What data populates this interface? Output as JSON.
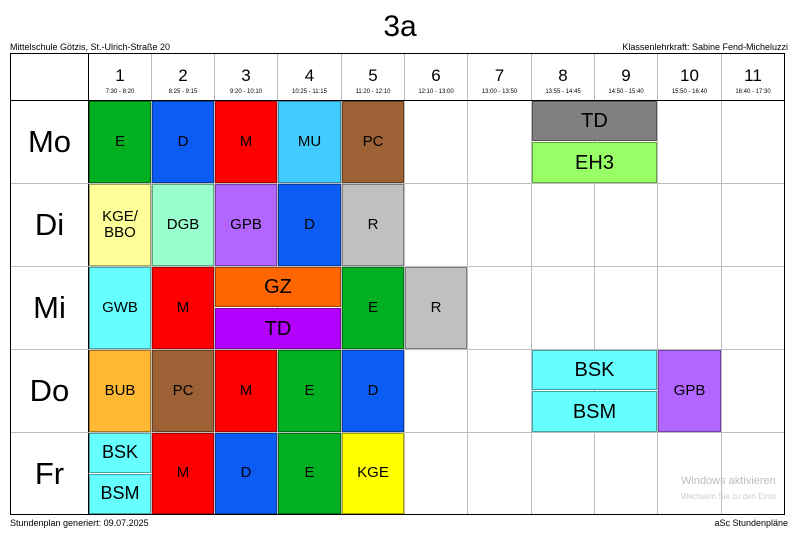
{
  "title": "3a",
  "school": "Mittelschule Götzis, St.-Ulrich-Straße 20",
  "teacher": "Klassenlehrkraft: Sabine Fend-Micheluzzi",
  "footer_left": "Stundenplan generiert: 09.07.2025",
  "footer_right": "aSc Stundenpläne",
  "watermark_title": "Windows aktivieren",
  "watermark_sub": "Wechseln Sie zu den Einst",
  "periods": [
    {
      "num": "1",
      "time": "7:30 - 8:20"
    },
    {
      "num": "2",
      "time": "8:25 - 9:15"
    },
    {
      "num": "3",
      "time": "9:20 - 10:10"
    },
    {
      "num": "4",
      "time": "10:25 - 11:15"
    },
    {
      "num": "5",
      "time": "11:20 - 12:10"
    },
    {
      "num": "6",
      "time": "12:10 - 13:00"
    },
    {
      "num": "7",
      "time": "13:00 - 13:50"
    },
    {
      "num": "8",
      "time": "13:55 - 14:45"
    },
    {
      "num": "9",
      "time": "14:50 - 15:40"
    },
    {
      "num": "10",
      "time": "15:50 - 16:40"
    },
    {
      "num": "11",
      "time": "16:40 - 17:30"
    }
  ],
  "days": [
    "Mo",
    "Di",
    "Mi",
    "Do",
    "Fr"
  ],
  "lessons": {
    "mo_e": "E",
    "mo_d": "D",
    "mo_m": "M",
    "mo_mu": "MU",
    "mo_pc": "PC",
    "mo_td": "TD",
    "mo_eh3": "EH3",
    "di_kge": "KGE/\nBBO",
    "di_dgb": "DGB",
    "di_gpb": "GPB",
    "di_d": "D",
    "di_r": "R",
    "mi_gwb": "GWB",
    "mi_m": "M",
    "mi_gz": "GZ",
    "mi_td": "TD",
    "mi_e": "E",
    "mi_r": "R",
    "do_bub": "BUB",
    "do_pc": "PC",
    "do_m": "M",
    "do_e": "E",
    "do_d": "D",
    "do_bsk": "BSK",
    "do_bsm": "BSM",
    "do_gpb": "GPB",
    "fr_bsk": "BSK",
    "fr_bsm": "BSM",
    "fr_m": "M",
    "fr_d": "D",
    "fr_e": "E",
    "fr_kge": "KGE"
  },
  "colors": {
    "green": "#00b020",
    "blue": "#0b5cf5",
    "red": "#ff0000",
    "cyan": "#40ccff",
    "brown": "#9c6236",
    "gray": "#808080",
    "lightgreen": "#99ff66",
    "lightyellow": "#ffff99",
    "mint": "#99ffcc",
    "purple": "#b266ff",
    "silver": "#c0c0c0",
    "aqua": "#66ffff",
    "orange": "#ff6600",
    "violet": "#b400ff",
    "amber": "#ffb833",
    "yellow": "#ffff00"
  }
}
